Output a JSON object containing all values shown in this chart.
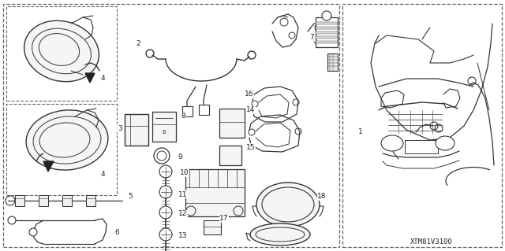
{
  "bg_color": "#ffffff",
  "line_color": "#333333",
  "text_color": "#222222",
  "dash_color": "#666666",
  "fig_width": 6.4,
  "fig_height": 3.19,
  "dpi": 100,
  "diagram_id": "XTM81V3100",
  "font_size": 6.5
}
